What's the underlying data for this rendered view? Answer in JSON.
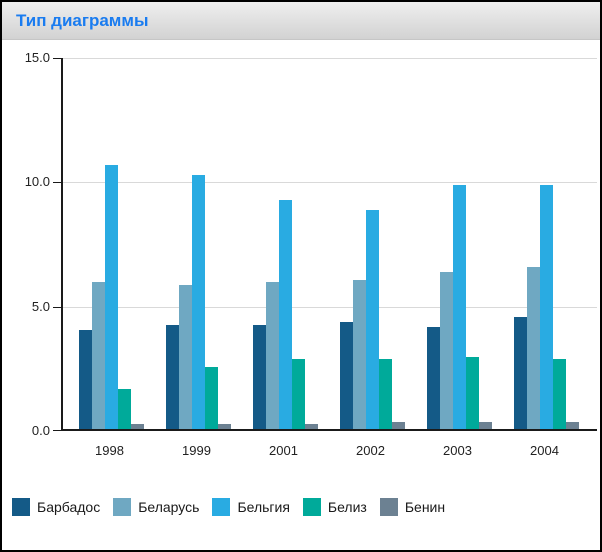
{
  "header": {
    "title": "Тип диаграммы",
    "title_color": "#1a7cf0"
  },
  "chart_data": {
    "type": "bar",
    "title": "Тип диаграммы",
    "categories": [
      "1998",
      "1999",
      "2001",
      "2002",
      "2003",
      "2004"
    ],
    "series": [
      {
        "name": "Барбадос",
        "color": "#145a87",
        "values": [
          4.0,
          4.2,
          4.2,
          4.3,
          4.1,
          4.5
        ]
      },
      {
        "name": "Беларусь",
        "color": "#6fa8c2",
        "values": [
          5.9,
          5.8,
          5.9,
          6.0,
          6.3,
          6.5
        ]
      },
      {
        "name": "Бельгия",
        "color": "#29abe2",
        "values": [
          10.6,
          10.2,
          9.2,
          8.8,
          9.8,
          9.8
        ]
      },
      {
        "name": "Белиз",
        "color": "#00aa9a",
        "values": [
          1.6,
          2.5,
          2.8,
          2.8,
          2.9,
          2.8
        ]
      },
      {
        "name": "Бенин",
        "color": "#6c8192",
        "values": [
          0.2,
          0.2,
          0.2,
          0.3,
          0.3,
          0.3
        ]
      }
    ],
    "xlabel": "",
    "ylabel": "",
    "ylim": [
      0,
      15
    ],
    "yticks": [
      {
        "label": "0.0",
        "value": 0
      },
      {
        "label": "5.0",
        "value": 5
      },
      {
        "label": "10.0",
        "value": 10
      },
      {
        "label": "15.0",
        "value": 15
      }
    ],
    "grid": true,
    "legend_position": "bottom"
  }
}
